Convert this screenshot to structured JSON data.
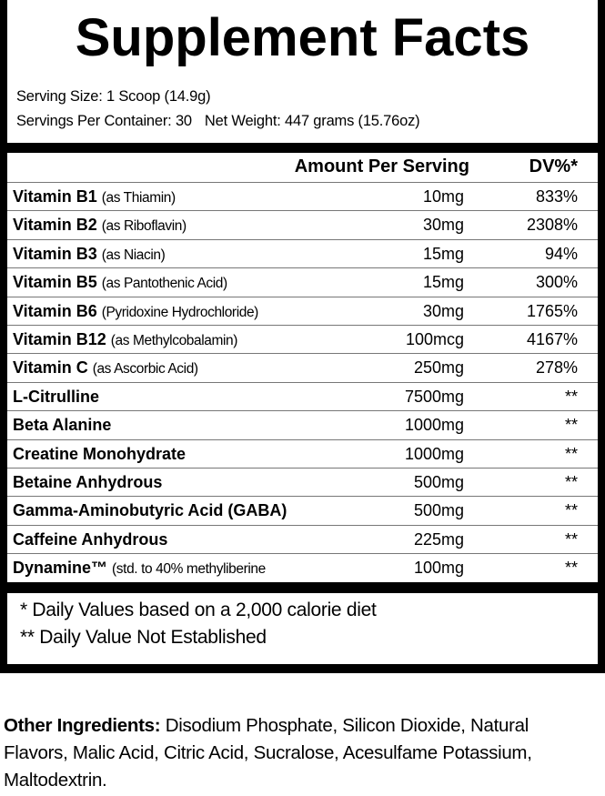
{
  "title": "Supplement Facts",
  "serving_size": "Serving Size: 1 Scoop (14.9g)",
  "servings_per_container": "Servings Per Container: 30",
  "net_weight": "Net Weight: 447 grams (15.76oz)",
  "header": {
    "amount": "Amount Per Serving",
    "dv": "DV%*"
  },
  "rows": [
    {
      "name": "Vitamin B1",
      "detail": "(as Thiamin)",
      "amount": "10mg",
      "dv": "833%"
    },
    {
      "name": "Vitamin B2",
      "detail": "(as Riboflavin)",
      "amount": "30mg",
      "dv": "2308%"
    },
    {
      "name": "Vitamin B3",
      "detail": "(as Niacin)",
      "amount": "15mg",
      "dv": "94%"
    },
    {
      "name": "Vitamin B5",
      "detail": "(as Pantothenic Acid)",
      "amount": "15mg",
      "dv": "300%"
    },
    {
      "name": "Vitamin B6",
      "detail": "(Pyridoxine Hydrochloride)",
      "amount": "30mg",
      "dv": "1765%"
    },
    {
      "name": "Vitamin B12",
      "detail": "(as Methylcobalamin)",
      "amount": "100mcg",
      "dv": "4167%"
    },
    {
      "name": "Vitamin C",
      "detail": "(as Ascorbic Acid)",
      "amount": "250mg",
      "dv": "278%"
    },
    {
      "name": "L-Citrulline",
      "detail": "",
      "amount": "7500mg",
      "dv": "**"
    },
    {
      "name": "Beta Alanine",
      "detail": "",
      "amount": "1000mg",
      "dv": "**"
    },
    {
      "name": "Creatine Monohydrate",
      "detail": "",
      "amount": "1000mg",
      "dv": "**"
    },
    {
      "name": "Betaine Anhydrous",
      "detail": "",
      "amount": "500mg",
      "dv": "**"
    },
    {
      "name": "Gamma-Aminobutyric Acid (GABA)",
      "detail": "",
      "amount": "500mg",
      "dv": "**"
    },
    {
      "name": "Caffeine Anhydrous",
      "detail": "",
      "amount": "225mg",
      "dv": "**"
    },
    {
      "name": "Dynamine™",
      "detail": "(std. to 40% methyliberine",
      "amount": "100mg",
      "dv": "**"
    }
  ],
  "footnotes": [
    "* Daily Values based on a 2,000 calorie diet",
    "** Daily Value Not Established"
  ],
  "other_ingredients": {
    "label": "Other Ingredients:",
    "text": " Disodium Phosphate, Silicon Dioxide, Natural Flavors, Malic Acid, Citric Acid, Sucralose, Acesulfame Potassium, Maltodextrin."
  }
}
